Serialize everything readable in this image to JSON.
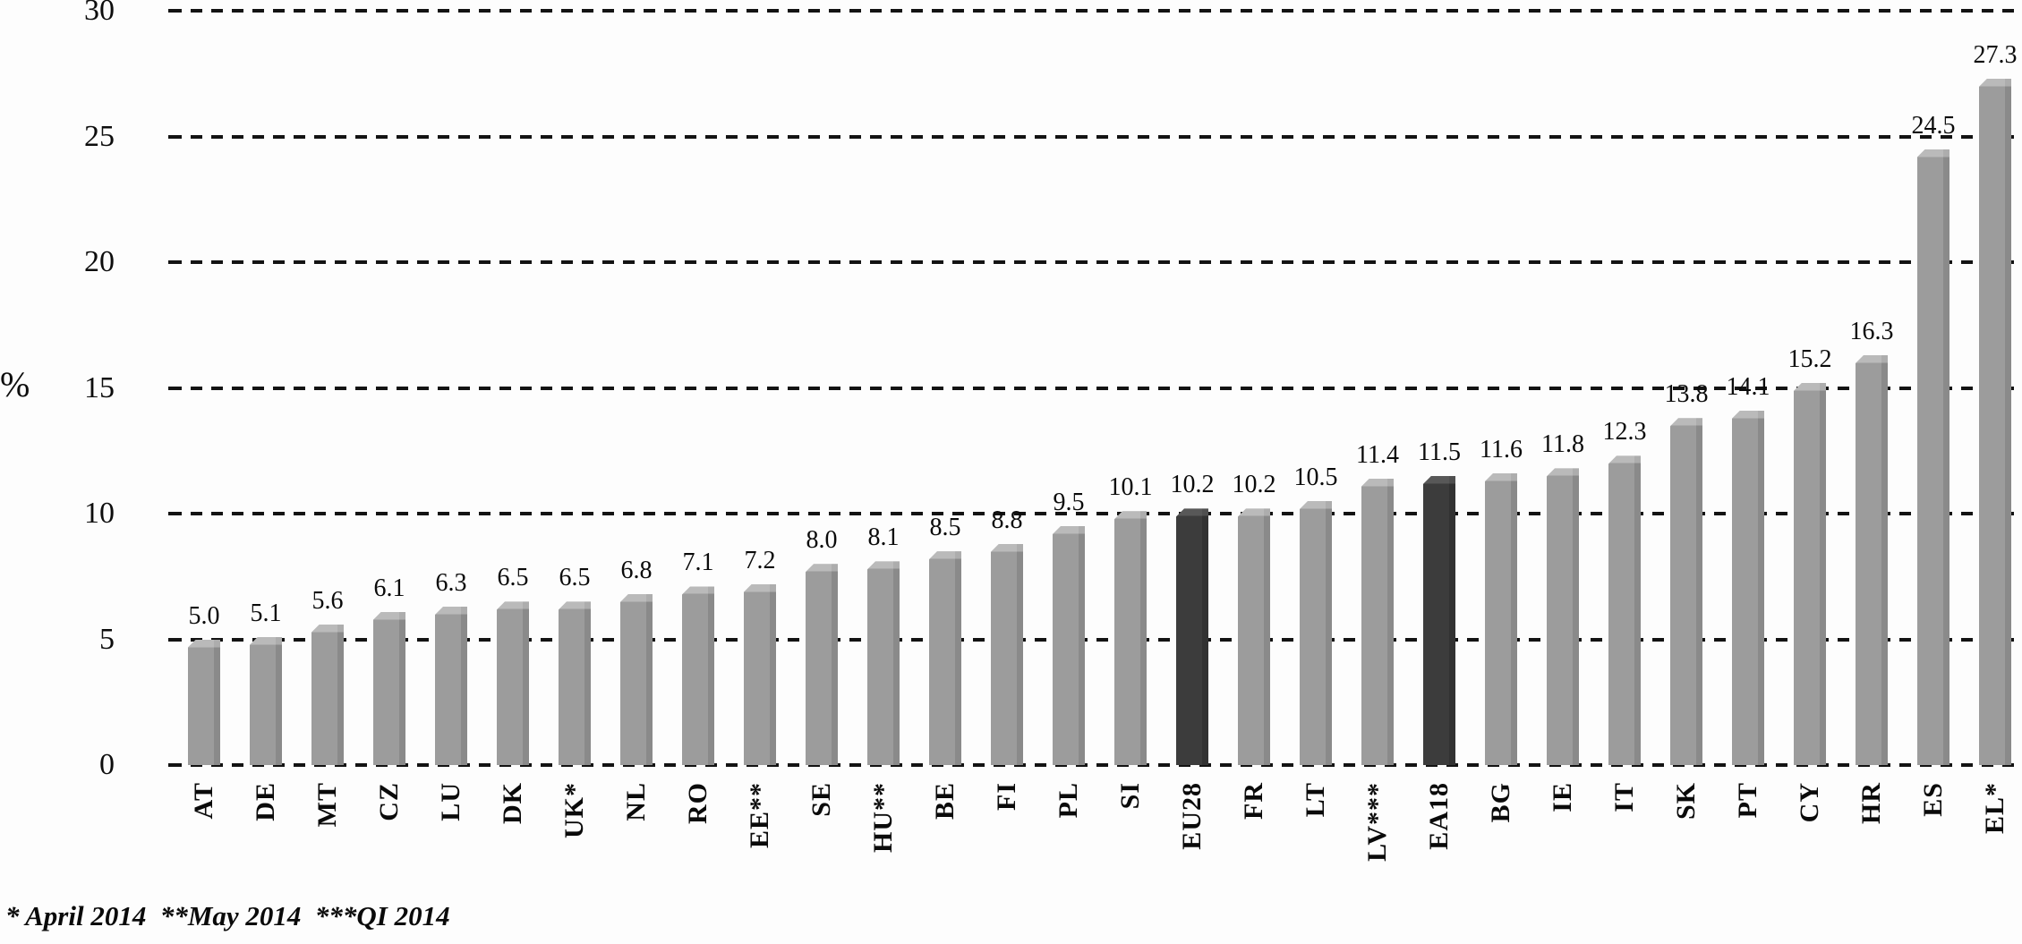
{
  "chart_data": {
    "type": "bar",
    "title": "",
    "xlabel": "",
    "ylabel": "%",
    "ylim": [
      0,
      30
    ],
    "yticks": [
      0,
      5,
      10,
      15,
      20,
      25,
      30
    ],
    "grid": "horizontal-dashed",
    "legend": "none",
    "categories": [
      "AT",
      "DE",
      "MT",
      "CZ",
      "LU",
      "DK",
      "UK*",
      "NL",
      "RO",
      "EE**",
      "SE",
      "HU**",
      "BE",
      "FI",
      "PL",
      "SI",
      "EU28",
      "FR",
      "LT",
      "LV***",
      "EA18",
      "BG",
      "IE",
      "IT",
      "SK",
      "PT",
      "CY",
      "HR",
      "ES",
      "EL*"
    ],
    "values": [
      5.0,
      5.1,
      5.6,
      6.1,
      6.3,
      6.5,
      6.5,
      6.8,
      7.1,
      7.2,
      8.0,
      8.1,
      8.5,
      8.8,
      9.5,
      10.1,
      10.2,
      10.2,
      10.5,
      11.4,
      11.5,
      11.6,
      11.8,
      12.3,
      13.8,
      14.1,
      15.2,
      16.3,
      24.5,
      27.3
    ],
    "highlighted_categories": [
      "EU28",
      "EA18"
    ],
    "colors": {
      "bar": "#9c9c9c",
      "bar_highlight": "#3c3c3c",
      "gridline": "#131313",
      "text": "#0a0a0a",
      "background": "#fdfdfd"
    },
    "footnote": "* April 2014  **May 2014  ***QI 2014"
  }
}
